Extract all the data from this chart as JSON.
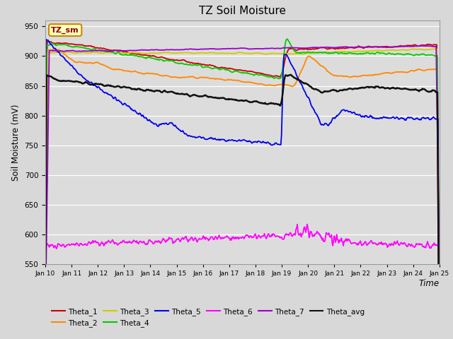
{
  "title": "TZ Soil Moisture",
  "xlabel": "Time",
  "ylabel": "Soil Moisture (mV)",
  "ylim": [
    550,
    960
  ],
  "yticks": [
    550,
    600,
    650,
    700,
    750,
    800,
    850,
    900,
    950
  ],
  "xlim": [
    0,
    15
  ],
  "fig_bg": "#d8d8d8",
  "plot_bg": "#dcdcdc",
  "legend_label": "TZ_sm",
  "series_colors": {
    "Theta_1": "#cc0000",
    "Theta_2": "#ff8800",
    "Theta_3": "#cccc00",
    "Theta_4": "#00cc00",
    "Theta_5": "#0000ee",
    "Theta_6": "#ff00ff",
    "Theta_7": "#9900cc",
    "Theta_avg": "#111111"
  }
}
